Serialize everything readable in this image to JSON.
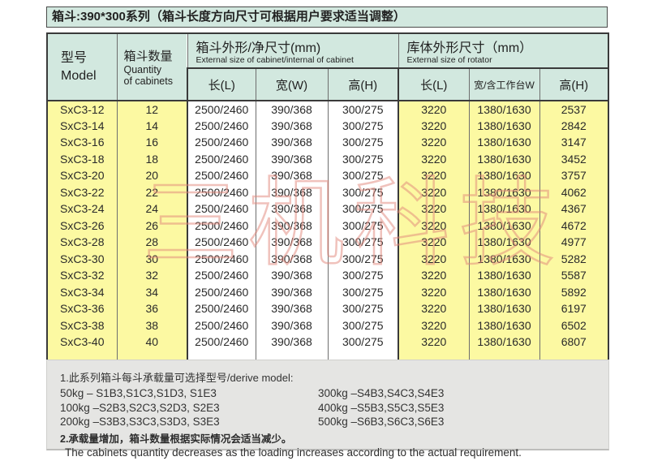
{
  "title": "箱斗:390*300系列（箱斗长度方向尺寸可根据用户要求适当调整）",
  "table": {
    "header": {
      "model_cn": "型号",
      "model_en": "Model",
      "quantity_cn": "箱斗数量",
      "quantity_en1": "Quantity",
      "quantity_en2": "of cabinets",
      "cabinet_group_cn": "箱斗外形/净尺寸(mm)",
      "cabinet_group_en": "External size of cabinet/internal of cabinet",
      "rotator_group_cn": "库体外形尺寸（mm）",
      "rotator_group_en": "External size of rotator",
      "sub": [
        "长(L)",
        "宽(W)",
        "高(H)",
        "长(L)",
        "宽/含工作台W",
        "高(H)"
      ]
    },
    "rows": [
      [
        "SxC3-12",
        "12",
        "2500/2460",
        "390/368",
        "300/275",
        "3220",
        "1380/1630",
        "2537"
      ],
      [
        "SxC3-14",
        "14",
        "2500/2460",
        "390/368",
        "300/275",
        "3220",
        "1380/1630",
        "2842"
      ],
      [
        "SxC3-16",
        "16",
        "2500/2460",
        "390/368",
        "300/275",
        "3220",
        "1380/1630",
        "3147"
      ],
      [
        "SxC3-18",
        "18",
        "2500/2460",
        "390/368",
        "300/275",
        "3220",
        "1380/1630",
        "3452"
      ],
      [
        "SxC3-20",
        "20",
        "2500/2460",
        "390/368",
        "300/275",
        "3220",
        "1380/1630",
        "3757"
      ],
      [
        "SxC3-22",
        "22",
        "2500/2460",
        "390/368",
        "300/275",
        "3220",
        "1380/1630",
        "4062"
      ],
      [
        "SxC3-24",
        "24",
        "2500/2460",
        "390/368",
        "300/275",
        "3220",
        "1380/1630",
        "4367"
      ],
      [
        "SxC3-26",
        "26",
        "2500/2460",
        "390/368",
        "300/275",
        "3220",
        "1380/1630",
        "4672"
      ],
      [
        "SxC3-28",
        "28",
        "2500/2460",
        "390/368",
        "300/275",
        "3220",
        "1380/1630",
        "4977"
      ],
      [
        "SxC3-30",
        "30",
        "2500/2460",
        "390/368",
        "300/275",
        "3220",
        "1380/1630",
        "5282"
      ],
      [
        "SxC3-32",
        "32",
        "2500/2460",
        "390/368",
        "300/275",
        "3220",
        "1380/1630",
        "5587"
      ],
      [
        "SxC3-34",
        "34",
        "2500/2460",
        "390/368",
        "300/275",
        "3220",
        "1380/1630",
        "5892"
      ],
      [
        "SxC3-36",
        "36",
        "2500/2460",
        "390/368",
        "300/275",
        "3220",
        "1380/1630",
        "6197"
      ],
      [
        "SxC3-38",
        "38",
        "2500/2460",
        "390/368",
        "300/275",
        "3220",
        "1380/1630",
        "6502"
      ],
      [
        "SxC3-40",
        "40",
        "2500/2460",
        "390/368",
        "300/275",
        "3220",
        "1380/1630",
        "6807"
      ]
    ]
  },
  "notes": {
    "line1": "1.此系列箱斗每斗承载量可选择型号/derive model:",
    "left": [
      "50kg – S1B3,S1C3,S1D3, S1E3",
      "100kg –S2B3,S2C3,S2D3, S2E3",
      "200kg –S3B3,S3C3,S3D3, S3E3"
    ],
    "right": [
      "300kg –S4B3,S4C3,S4E3",
      "400kg –S5B3,S5C3,S5E3",
      "500kg –S6B3,S6C3,S6E3"
    ],
    "line2_cn": "2.承载量增加，箱斗数量根据实际情况会适当减少。",
    "line2_en": "The cabinets quantity decreases as the loading increases according to the actual requirement."
  },
  "watermark": "三机科技",
  "colors": {
    "header_green": "#d2e8df",
    "cell_yellow": "#fcf9a2",
    "notes_gray": "#e5e5e3",
    "border_dark": "#3a3a3a",
    "watermark_red": "#e2877b"
  }
}
